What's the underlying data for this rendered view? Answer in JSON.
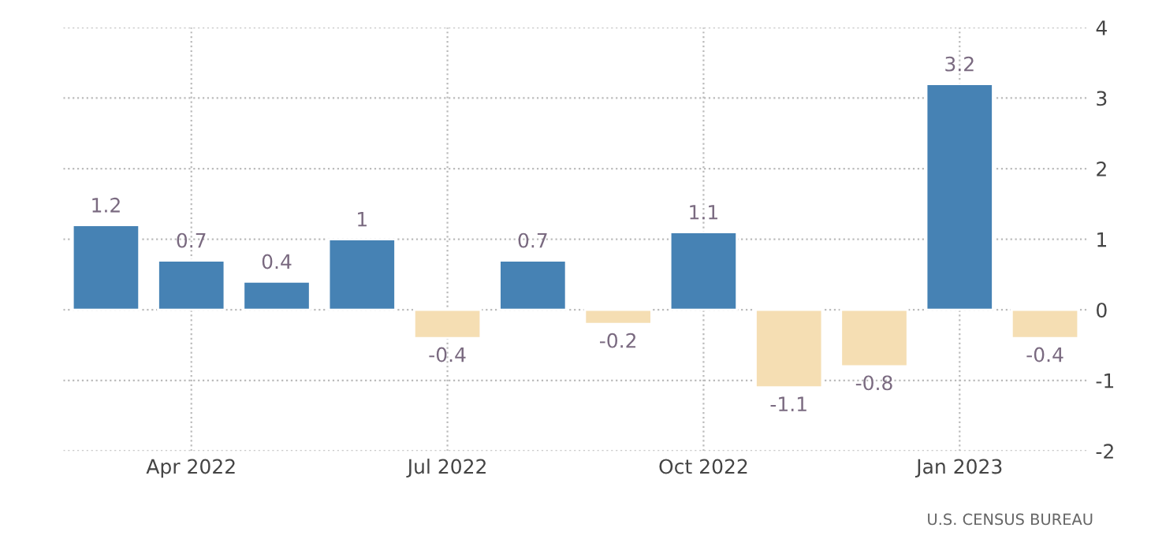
{
  "chart_data": {
    "type": "bar",
    "categories": [
      null,
      "Apr 2022",
      null,
      null,
      "Jul 2022",
      null,
      null,
      "Oct 2022",
      null,
      null,
      "Jan 2023",
      null
    ],
    "values": [
      1.2,
      0.7,
      0.4,
      1,
      -0.4,
      0.7,
      -0.2,
      1.1,
      -1.1,
      -0.8,
      3.2,
      -0.4
    ],
    "colors": [
      "#4682b4",
      "#4682b4",
      "#4682b4",
      "#4682b4",
      "#f5deb3",
      "#4682b4",
      "#f5deb3",
      "#4682b4",
      "#f5deb3",
      "#f5deb3",
      "#4682b4",
      "#f5deb3"
    ],
    "ylim": [
      -2,
      4
    ],
    "yticks": [
      -2,
      -1,
      0,
      1,
      2,
      3,
      4
    ],
    "grid": true,
    "data_labels": true,
    "annotations": [
      "U.S. CENSUS BUREAU"
    ]
  }
}
